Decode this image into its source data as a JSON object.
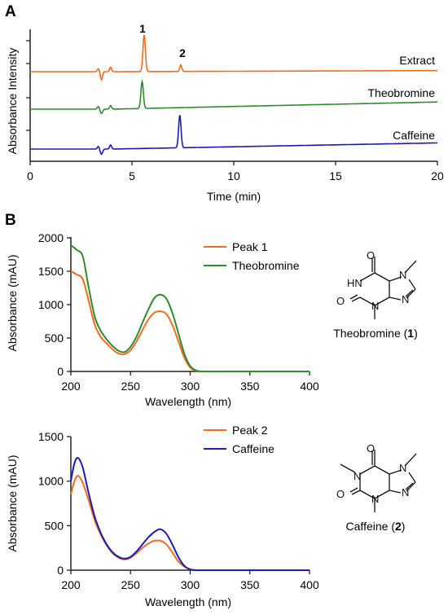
{
  "panels": {
    "a_letter": "A",
    "b_letter": "B"
  },
  "structures": {
    "theobromine": {
      "name": "Theobromine",
      "number": "1"
    },
    "caffeine": {
      "name": "Caffeine",
      "number": "2"
    }
  },
  "chart_data": [
    {
      "type": "line",
      "panel": "A",
      "xlabel": "Time (min)",
      "ylabel": "Absorbance Intensity",
      "xlim": [
        0,
        20
      ],
      "xticks": [
        "0",
        "5",
        "10",
        "15",
        "20"
      ],
      "grid": false,
      "peak_labels": [
        {
          "text": "1",
          "x": 5.6
        },
        {
          "text": "2",
          "x": 7.4
        }
      ],
      "series": [
        {
          "name": "Extract",
          "color": "#f26b1d",
          "baseline": 0.0,
          "drift": 0.03,
          "peaks": [
            [
              5.6,
              1.0,
              0.06
            ],
            [
              7.4,
              0.18,
              0.05
            ]
          ],
          "dips": [
            [
              3.5,
              -0.22,
              0.05
            ],
            [
              3.35,
              0.08,
              0.05
            ],
            [
              3.95,
              0.12,
              0.05
            ]
          ]
        },
        {
          "name": "Theobromine",
          "color": "#2e8b2e",
          "baseline": 0.0,
          "drift": 0.2,
          "peaks": [
            [
              5.5,
              0.75,
              0.06
            ]
          ],
          "dips": [
            [
              3.5,
              -0.12,
              0.06
            ],
            [
              3.35,
              0.08,
              0.05
            ],
            [
              3.95,
              0.1,
              0.05
            ]
          ]
        },
        {
          "name": "Caffeine",
          "color": "#1a1ab8",
          "baseline": 0.0,
          "drift": 0.18,
          "peaks": [
            [
              7.35,
              0.95,
              0.06
            ]
          ],
          "dips": [
            [
              3.5,
              -0.15,
              0.06
            ],
            [
              3.35,
              0.08,
              0.05
            ],
            [
              3.95,
              0.12,
              0.05
            ]
          ]
        }
      ]
    },
    {
      "type": "line",
      "panel": "B-top",
      "xlabel": "Wavelength (nm)",
      "ylabel": "Absorbance (mAU)",
      "xlim": [
        200,
        400
      ],
      "ylim": [
        0,
        2000
      ],
      "xticks": [
        "200",
        "250",
        "300",
        "350",
        "400"
      ],
      "yticks": [
        "0",
        "500",
        "1000",
        "1500",
        "2000"
      ],
      "legend": "top-right",
      "x": [
        200,
        205,
        210,
        215,
        220,
        225,
        230,
        235,
        240,
        245,
        250,
        255,
        260,
        265,
        270,
        275,
        280,
        285,
        290,
        295,
        300,
        305,
        310,
        320,
        340,
        360,
        380,
        400
      ],
      "series": [
        {
          "name": "Peak 1",
          "color": "#f26b1d",
          "values": [
            1500,
            1450,
            1380,
            1050,
            700,
            520,
            420,
            330,
            270,
            260,
            320,
            450,
            620,
            780,
            880,
            900,
            860,
            700,
            460,
            210,
            60,
            10,
            0,
            0,
            0,
            0,
            0,
            0
          ]
        },
        {
          "name": "Theobromine",
          "color": "#2e8b2e",
          "values": [
            1890,
            1820,
            1720,
            1250,
            820,
            610,
            480,
            380,
            310,
            290,
            370,
            520,
            730,
            930,
            1100,
            1150,
            1090,
            880,
            580,
            270,
            80,
            15,
            0,
            0,
            0,
            0,
            0,
            0
          ]
        }
      ]
    },
    {
      "type": "line",
      "panel": "B-bottom",
      "xlabel": "Wavelength (nm)",
      "ylabel": "Absorbance (mAU)",
      "xlim": [
        200,
        400
      ],
      "ylim": [
        0,
        1500
      ],
      "xticks": [
        "200",
        "250",
        "300",
        "350",
        "400"
      ],
      "yticks": [
        "0",
        "500",
        "1000",
        "1500"
      ],
      "legend": "top-right",
      "x": [
        200,
        203,
        206,
        210,
        215,
        220,
        225,
        230,
        235,
        240,
        245,
        250,
        255,
        260,
        265,
        270,
        275,
        280,
        285,
        290,
        295,
        300,
        305,
        310,
        320,
        340,
        360,
        380,
        400
      ],
      "series": [
        {
          "name": "Peak 2",
          "color": "#f26b1d",
          "values": [
            850,
            1000,
            1060,
            980,
            780,
            560,
            400,
            280,
            190,
            140,
            120,
            140,
            190,
            250,
            300,
            330,
            330,
            290,
            200,
            100,
            40,
            10,
            0,
            0,
            0,
            0,
            0,
            0,
            0
          ]
        },
        {
          "name": "Caffeine",
          "color": "#1a1ab8",
          "values": [
            1000,
            1200,
            1260,
            1150,
            860,
            600,
            420,
            290,
            200,
            150,
            130,
            150,
            210,
            290,
            370,
            430,
            460,
            410,
            290,
            150,
            50,
            10,
            0,
            0,
            0,
            0,
            0,
            0,
            0
          ]
        }
      ]
    }
  ]
}
